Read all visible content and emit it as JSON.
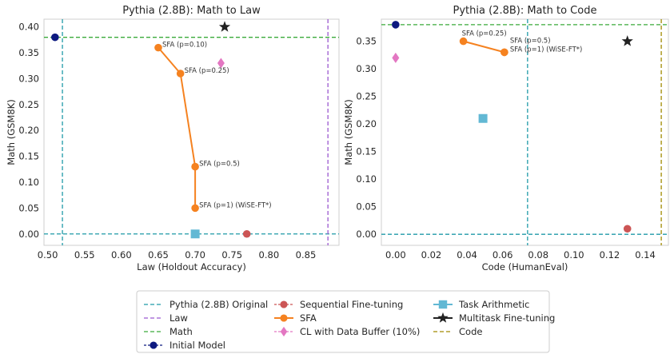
{
  "chart_data": [
    {
      "type": "scatter",
      "title": "Pythia (2.8B): Math to Law",
      "xlabel": "Law (Holdout Accuracy)",
      "ylabel": "Math (GSM8K)",
      "xlim": [
        0.495,
        0.895
      ],
      "ylim": [
        -0.022,
        0.415
      ],
      "xticks": [
        0.5,
        0.55,
        0.6,
        0.65,
        0.7,
        0.75,
        0.8,
        0.85
      ],
      "xtick_labels": [
        "0.50",
        "0.55",
        "0.60",
        "0.65",
        "0.70",
        "0.75",
        "0.80",
        "0.85"
      ],
      "yticks": [
        0.0,
        0.05,
        0.1,
        0.15,
        0.2,
        0.25,
        0.3,
        0.35,
        0.4
      ],
      "ytick_labels": [
        "0.00",
        "0.05",
        "0.10",
        "0.15",
        "0.20",
        "0.25",
        "0.30",
        "0.35",
        "0.40"
      ],
      "grid": false,
      "reference_lines": [
        {
          "key": "original",
          "orient": "v",
          "value": 0.52
        },
        {
          "key": "original",
          "orient": "h",
          "value": 0.0
        },
        {
          "key": "domain_x",
          "orient": "v",
          "value": 0.88
        },
        {
          "key": "math",
          "orient": "h",
          "value": 0.38
        }
      ],
      "initial_model": {
        "x": 0.51,
        "y": 0.38
      },
      "sequential": {
        "x": 0.77,
        "y": 0.0
      },
      "cl_buffer": {
        "x": 0.735,
        "y": 0.33
      },
      "task_arithmetic": {
        "x": 0.7,
        "y": 0.0
      },
      "multitask": {
        "x": 0.74,
        "y": 0.4
      },
      "sfa": [
        {
          "x": 0.65,
          "y": 0.36,
          "label": "SFA (p=0.10)"
        },
        {
          "x": 0.68,
          "y": 0.31,
          "label": "SFA (p=0.25)"
        },
        {
          "x": 0.7,
          "y": 0.13,
          "label": "SFA (p=0.5)"
        },
        {
          "x": 0.7,
          "y": 0.05,
          "label": "SFA (p=1) (WiSE-FT*)"
        }
      ]
    },
    {
      "type": "scatter",
      "title": "Pythia (2.8B): Math to Code",
      "xlabel": "Code (HumanEval)",
      "ylabel": "Math (GSM8K)",
      "xlim": [
        -0.008,
        0.153
      ],
      "ylim": [
        -0.02,
        0.39
      ],
      "xticks": [
        0.0,
        0.02,
        0.04,
        0.06,
        0.08,
        0.1,
        0.12,
        0.14
      ],
      "xtick_labels": [
        "0.00",
        "0.02",
        "0.04",
        "0.06",
        "0.08",
        "0.10",
        "0.12",
        "0.14"
      ],
      "yticks": [
        0.0,
        0.05,
        0.1,
        0.15,
        0.2,
        0.25,
        0.3,
        0.35
      ],
      "ytick_labels": [
        "0.00",
        "0.05",
        "0.10",
        "0.15",
        "0.20",
        "0.25",
        "0.30",
        "0.35"
      ],
      "grid": false,
      "reference_lines": [
        {
          "key": "original",
          "orient": "v",
          "value": 0.074
        },
        {
          "key": "original",
          "orient": "h",
          "value": 0.0
        },
        {
          "key": "domain_x",
          "orient": "v",
          "value": 0.149
        },
        {
          "key": "math",
          "orient": "h",
          "value": 0.38
        }
      ],
      "initial_model": {
        "x": 0.0,
        "y": 0.38
      },
      "sequential": {
        "x": 0.13,
        "y": 0.01
      },
      "cl_buffer": {
        "x": 0.0,
        "y": 0.32
      },
      "task_arithmetic": {
        "x": 0.049,
        "y": 0.21
      },
      "multitask": {
        "x": 0.13,
        "y": 0.35
      },
      "sfa": [
        {
          "x": 0.038,
          "y": 0.35,
          "label": "SFA (p=0.25)"
        },
        {
          "x": 0.061,
          "y": 0.33,
          "label": "SFA (p=0.5)"
        },
        {
          "x": 0.061,
          "y": 0.33,
          "label": "SFA (p=1) (WiSE-FT*)"
        }
      ]
    }
  ],
  "legend": {
    "placement": "bottom-center",
    "items": [
      {
        "key": "original",
        "label": "Pythia (2.8B) Original",
        "kind": "dashed-line",
        "color": "#1f9aa8"
      },
      {
        "key": "law",
        "label": "Law",
        "kind": "dashed-line",
        "color": "#9b59d0"
      },
      {
        "key": "math",
        "label": "Math",
        "kind": "dashed-line",
        "color": "#3aaa3a"
      },
      {
        "key": "initial",
        "label": "Initial Model",
        "kind": "marker-dashed",
        "marker": "circle",
        "color": "#0d1a80"
      },
      {
        "key": "sequential",
        "label": "Sequential Fine-tuning",
        "kind": "marker-dashed",
        "marker": "circle",
        "color": "#cc5555"
      },
      {
        "key": "sfa",
        "label": "SFA",
        "kind": "marker-solid",
        "marker": "circle",
        "color": "#f58220"
      },
      {
        "key": "cl",
        "label": "CL with Data Buffer (10%)",
        "kind": "marker-dashed",
        "marker": "diamond",
        "color": "#e377c2"
      },
      {
        "key": "ta",
        "label": "Task Arithmetic",
        "kind": "marker-solid",
        "marker": "square",
        "color": "#62b8d4"
      },
      {
        "key": "mt",
        "label": "Multitask Fine-tuning",
        "kind": "marker-solid",
        "marker": "star",
        "color": "#222222"
      },
      {
        "key": "code",
        "label": "Code",
        "kind": "dashed-line",
        "color": "#a08a00"
      }
    ]
  },
  "colors": {
    "original": "#1f9aa8",
    "law": "#9b59d0",
    "math": "#3aaa3a",
    "code": "#a08a00",
    "initial": "#0d1a80",
    "sequential": "#cc5555",
    "sfa": "#f58220",
    "cl": "#e377c2",
    "ta": "#62b8d4",
    "mt": "#222222"
  }
}
